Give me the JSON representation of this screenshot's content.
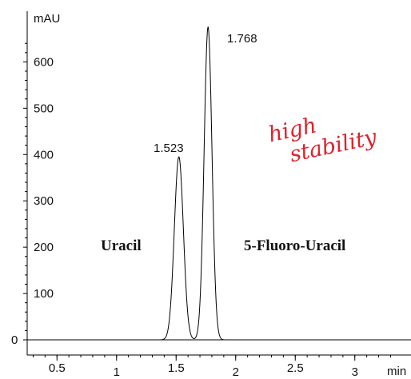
{
  "chart_data": {
    "type": "line",
    "ylabel": "mAU",
    "xlabel": "min",
    "xlim": [
      0.25,
      3.35
    ],
    "ylim": [
      -25,
      700
    ],
    "x_ticks": [
      0.5,
      1,
      1.5,
      2,
      2.5,
      3
    ],
    "x_tick_labels": [
      "0.5",
      "1",
      "1.5",
      "2",
      "2.5",
      "3"
    ],
    "y_ticks": [
      0,
      100,
      200,
      300,
      400,
      500,
      600
    ],
    "y_tick_labels": [
      "0",
      "100",
      "200",
      "300",
      "400",
      "500",
      "600"
    ],
    "grid": false,
    "series": [
      {
        "color": "#000000",
        "baseline": 0,
        "peaks": [
          {
            "retention_time": 1.523,
            "height": 395,
            "sigma": 0.038
          },
          {
            "retention_time": 1.768,
            "height": 675,
            "sigma": 0.033
          }
        ]
      }
    ],
    "peak_labels": [
      "1.523",
      "1.768"
    ],
    "compound_labels": [
      "Uracil",
      "5-Fluoro-Uracil"
    ],
    "annotation": [
      "high",
      "stability"
    ],
    "annotation_color": "#e0202a"
  }
}
